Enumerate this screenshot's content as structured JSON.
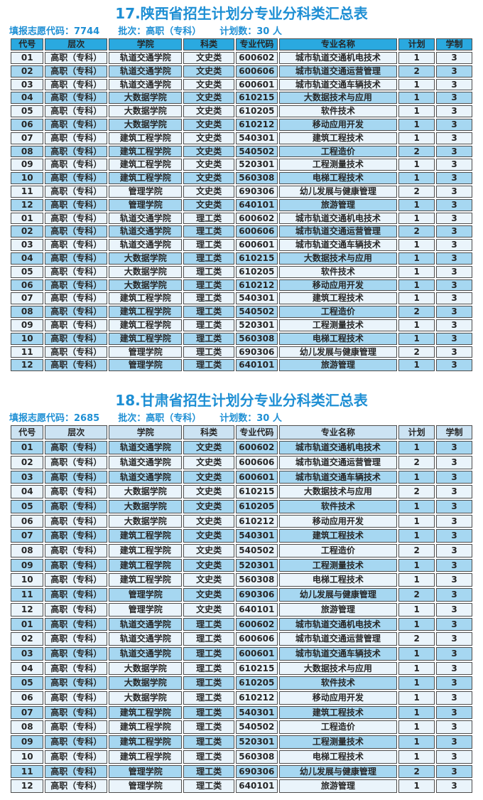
{
  "colors": {
    "title_blue": "#1E8FD4",
    "table1_header_bg": "#2AA9E0",
    "table2_header_bg": "#CCE3F3",
    "row_light": "#EAF4FB",
    "row_blue": "#A6D7F1",
    "cell_text": "#262626",
    "border": "#4D4D4D"
  },
  "columns": [
    "代号",
    "层次",
    "学院",
    "科类",
    "专业代码",
    "专业名称",
    "计划",
    "学制"
  ],
  "tables": [
    {
      "title": "17.陕西省招生计划分专业分科类汇总表",
      "meta": [
        "填报志愿代码：7744",
        "批次：高职（专科）",
        "计划数：30 人"
      ],
      "rows": [
        [
          "01",
          "高职（专科）",
          "轨道交通学院",
          "文史类",
          "600602",
          "城市轨道交通机电技术",
          "1",
          "3"
        ],
        [
          "02",
          "高职（专科）",
          "轨道交通学院",
          "文史类",
          "600606",
          "城市轨道交通运营管理",
          "2",
          "3"
        ],
        [
          "03",
          "高职（专科）",
          "轨道交通学院",
          "文史类",
          "600601",
          "城市轨道交通车辆技术",
          "1",
          "3"
        ],
        [
          "04",
          "高职（专科）",
          "大数据学院",
          "文史类",
          "610215",
          "大数据技术与应用",
          "1",
          "3"
        ],
        [
          "05",
          "高职（专科）",
          "大数据学院",
          "文史类",
          "610205",
          "软件技术",
          "1",
          "3"
        ],
        [
          "06",
          "高职（专科）",
          "大数据学院",
          "文史类",
          "610212",
          "移动应用开发",
          "1",
          "3"
        ],
        [
          "07",
          "高职（专科）",
          "建筑工程学院",
          "文史类",
          "540301",
          "建筑工程技术",
          "1",
          "3"
        ],
        [
          "08",
          "高职（专科）",
          "建筑工程学院",
          "文史类",
          "540502",
          "工程造价",
          "2",
          "3"
        ],
        [
          "09",
          "高职（专科）",
          "建筑工程学院",
          "文史类",
          "520301",
          "工程测量技术",
          "1",
          "3"
        ],
        [
          "10",
          "高职（专科）",
          "建筑工程学院",
          "文史类",
          "560308",
          "电梯工程技术",
          "1",
          "3"
        ],
        [
          "11",
          "高职（专科）",
          "管理学院",
          "文史类",
          "690306",
          "幼儿发展与健康管理",
          "2",
          "3"
        ],
        [
          "12",
          "高职（专科）",
          "管理学院",
          "文史类",
          "640101",
          "旅游管理",
          "1",
          "3"
        ],
        [
          "01",
          "高职（专科）",
          "轨道交通学院",
          "理工类",
          "600602",
          "城市轨道交通机电技术",
          "1",
          "3"
        ],
        [
          "02",
          "高职（专科）",
          "轨道交通学院",
          "理工类",
          "600606",
          "城市轨道交通运营管理",
          "2",
          "3"
        ],
        [
          "03",
          "高职（专科）",
          "轨道交通学院",
          "理工类",
          "600601",
          "城市轨道交通车辆技术",
          "1",
          "3"
        ],
        [
          "04",
          "高职（专科）",
          "大数据学院",
          "理工类",
          "610215",
          "大数据技术与应用",
          "1",
          "3"
        ],
        [
          "05",
          "高职（专科）",
          "大数据学院",
          "理工类",
          "610205",
          "软件技术",
          "1",
          "3"
        ],
        [
          "06",
          "高职（专科）",
          "大数据学院",
          "理工类",
          "610212",
          "移动应用开发",
          "1",
          "3"
        ],
        [
          "07",
          "高职（专科）",
          "建筑工程学院",
          "理工类",
          "540301",
          "建筑工程技术",
          "1",
          "3"
        ],
        [
          "08",
          "高职（专科）",
          "建筑工程学院",
          "理工类",
          "540502",
          "工程造价",
          "2",
          "3"
        ],
        [
          "09",
          "高职（专科）",
          "建筑工程学院",
          "理工类",
          "520301",
          "工程测量技术",
          "1",
          "3"
        ],
        [
          "10",
          "高职（专科）",
          "建筑工程学院",
          "理工类",
          "560308",
          "电梯工程技术",
          "1",
          "3"
        ],
        [
          "11",
          "高职（专科）",
          "管理学院",
          "理工类",
          "690306",
          "幼儿发展与健康管理",
          "2",
          "3"
        ],
        [
          "12",
          "高职（专科）",
          "管理学院",
          "理工类",
          "640101",
          "旅游管理",
          "1",
          "3"
        ]
      ]
    },
    {
      "title": "18.甘肃省招生计划分专业分科类汇总表",
      "meta": [
        "填报志愿代码：2685",
        "批次：高职（专科）",
        "计划数：30 人"
      ],
      "rows": [
        [
          "01",
          "高职（专科）",
          "轨道交通学院",
          "文史类",
          "600602",
          "城市轨道交通机电技术",
          "1",
          "3"
        ],
        [
          "02",
          "高职（专科）",
          "轨道交通学院",
          "文史类",
          "600606",
          "城市轨道交通运营管理",
          "2",
          "3"
        ],
        [
          "03",
          "高职（专科）",
          "轨道交通学院",
          "文史类",
          "600601",
          "城市轨道交通车辆技术",
          "1",
          "3"
        ],
        [
          "04",
          "高职（专科）",
          "大数据学院",
          "文史类",
          "610215",
          "大数据技术与应用",
          "2",
          "3"
        ],
        [
          "05",
          "高职（专科）",
          "大数据学院",
          "文史类",
          "610205",
          "软件技术",
          "1",
          "3"
        ],
        [
          "06",
          "高职（专科）",
          "大数据学院",
          "文史类",
          "610212",
          "移动应用开发",
          "1",
          "3"
        ],
        [
          "07",
          "高职（专科）",
          "建筑工程学院",
          "文史类",
          "540301",
          "建筑工程技术",
          "1",
          "3"
        ],
        [
          "08",
          "高职（专科）",
          "建筑工程学院",
          "文史类",
          "540502",
          "工程造价",
          "2",
          "3"
        ],
        [
          "09",
          "高职（专科）",
          "建筑工程学院",
          "文史类",
          "520301",
          "工程测量技术",
          "1",
          "3"
        ],
        [
          "10",
          "高职（专科）",
          "建筑工程学院",
          "文史类",
          "560308",
          "电梯工程技术",
          "1",
          "3"
        ],
        [
          "11",
          "高职（专科）",
          "管理学院",
          "文史类",
          "690306",
          "幼儿发展与健康管理",
          "2",
          "3"
        ],
        [
          "12",
          "高职（专科）",
          "管理学院",
          "文史类",
          "640101",
          "旅游管理",
          "1",
          "3"
        ],
        [
          "01",
          "高职（专科）",
          "轨道交通学院",
          "理工类",
          "600602",
          "城市轨道交通机电技术",
          "1",
          "3"
        ],
        [
          "02",
          "高职（专科）",
          "轨道交通学院",
          "理工类",
          "600606",
          "城市轨道交通运营管理",
          "2",
          "3"
        ],
        [
          "03",
          "高职（专科）",
          "轨道交通学院",
          "理工类",
          "600601",
          "城市轨道交通车辆技术",
          "1",
          "3"
        ],
        [
          "04",
          "高职（专科）",
          "大数据学院",
          "理工类",
          "610215",
          "大数据技术与应用",
          "1",
          "3"
        ],
        [
          "05",
          "高职（专科）",
          "大数据学院",
          "理工类",
          "610205",
          "软件技术",
          "1",
          "3"
        ],
        [
          "06",
          "高职（专科）",
          "大数据学院",
          "理工类",
          "610212",
          "移动应用开发",
          "1",
          "3"
        ],
        [
          "07",
          "高职（专科）",
          "建筑工程学院",
          "理工类",
          "540301",
          "建筑工程技术",
          "1",
          "3"
        ],
        [
          "08",
          "高职（专科）",
          "建筑工程学院",
          "理工类",
          "540502",
          "工程造价",
          "1",
          "3"
        ],
        [
          "09",
          "高职（专科）",
          "建筑工程学院",
          "理工类",
          "520301",
          "工程测量技术",
          "1",
          "3"
        ],
        [
          "10",
          "高职（专科）",
          "建筑工程学院",
          "理工类",
          "560308",
          "电梯工程技术",
          "1",
          "3"
        ],
        [
          "11",
          "高职（专科）",
          "管理学院",
          "理工类",
          "690306",
          "幼儿发展与健康管理",
          "2",
          "3"
        ],
        [
          "12",
          "高职（专科）",
          "管理学院",
          "理工类",
          "640101",
          "旅游管理",
          "1",
          "3"
        ]
      ]
    }
  ]
}
